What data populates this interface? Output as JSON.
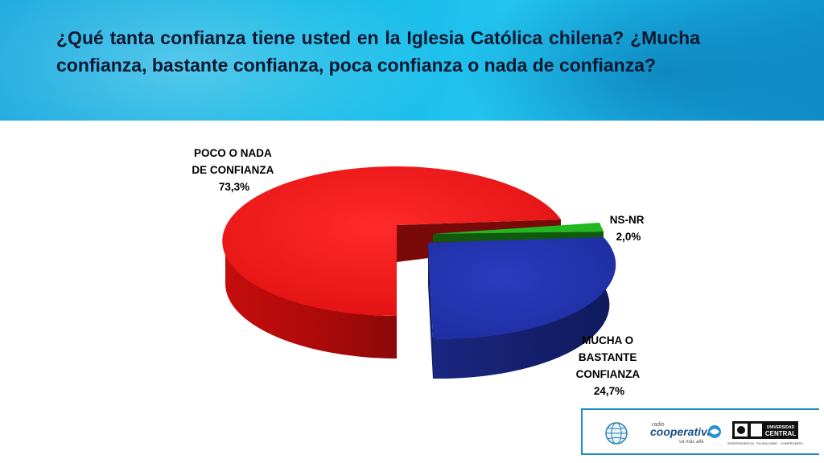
{
  "title": "¿Qué tanta confianza tiene usted en la Iglesia Católica chilena? ¿Mucha confianza, bastante confianza, poca confianza o nada de confianza?",
  "chart_data": {
    "type": "pie",
    "style": "3d-exploded",
    "slices": [
      {
        "label_lines": [
          "POCO O NADA",
          "DE CONFIANZA"
        ],
        "value_label": "73,3%",
        "value": 73.3,
        "color": "#ef1515"
      },
      {
        "label_lines": [
          "NS-NR"
        ],
        "value_label": "2,0%",
        "value": 2.0,
        "color": "#1fb31f"
      },
      {
        "label_lines": [
          "MUCHA O",
          "BASTANTE",
          "CONFIANZA"
        ],
        "value_label": "24,7%",
        "value": 24.7,
        "color": "#2233a8"
      }
    ]
  },
  "logos": {
    "radio_name": "cooperativa",
    "radio_small": "radio",
    "radio_tagline": "va más allá",
    "university_top": "UNIVERSIDAD",
    "university_name": "CENTRAL",
    "university_motto": "INDEPENDENCIA · PLURALISMO · COMPROMISO"
  },
  "icons": [
    "globe-icon",
    "cooperativa-swirl-icon",
    "university-crest-icon"
  ]
}
